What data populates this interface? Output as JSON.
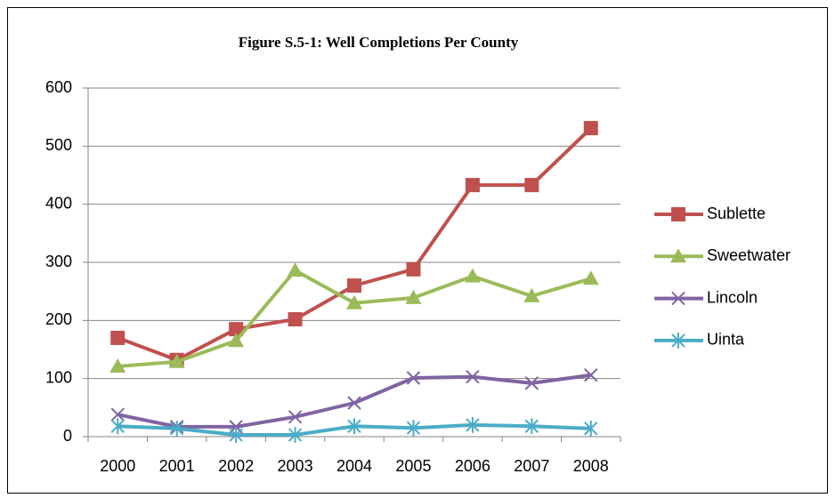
{
  "chart_data": {
    "type": "line",
    "title": "Figure S.5-1:  Well Completions Per County",
    "categories": [
      "2000",
      "2001",
      "2002",
      "2003",
      "2004",
      "2005",
      "2006",
      "2007",
      "2008"
    ],
    "series": [
      {
        "name": "Sublette",
        "color": "#c0504d",
        "marker": "square",
        "values": [
          170,
          132,
          185,
          202,
          260,
          288,
          433,
          433,
          531
        ]
      },
      {
        "name": "Sweetwater",
        "color": "#9bbb59",
        "marker": "triangle",
        "values": [
          121,
          129,
          165,
          286,
          230,
          239,
          276,
          242,
          272
        ]
      },
      {
        "name": "Lincoln",
        "color": "#8064a2",
        "marker": "x",
        "values": [
          38,
          17,
          17,
          34,
          58,
          101,
          103,
          92,
          106
        ]
      },
      {
        "name": "Uinta",
        "color": "#4bacc6",
        "marker": "asterisk",
        "values": [
          18,
          14,
          3,
          3,
          18,
          15,
          20,
          18,
          14
        ]
      }
    ],
    "ylim": [
      0,
      600
    ],
    "yticks": [
      0,
      100,
      200,
      300,
      400,
      500,
      600
    ],
    "grid": true,
    "legend": "right"
  }
}
